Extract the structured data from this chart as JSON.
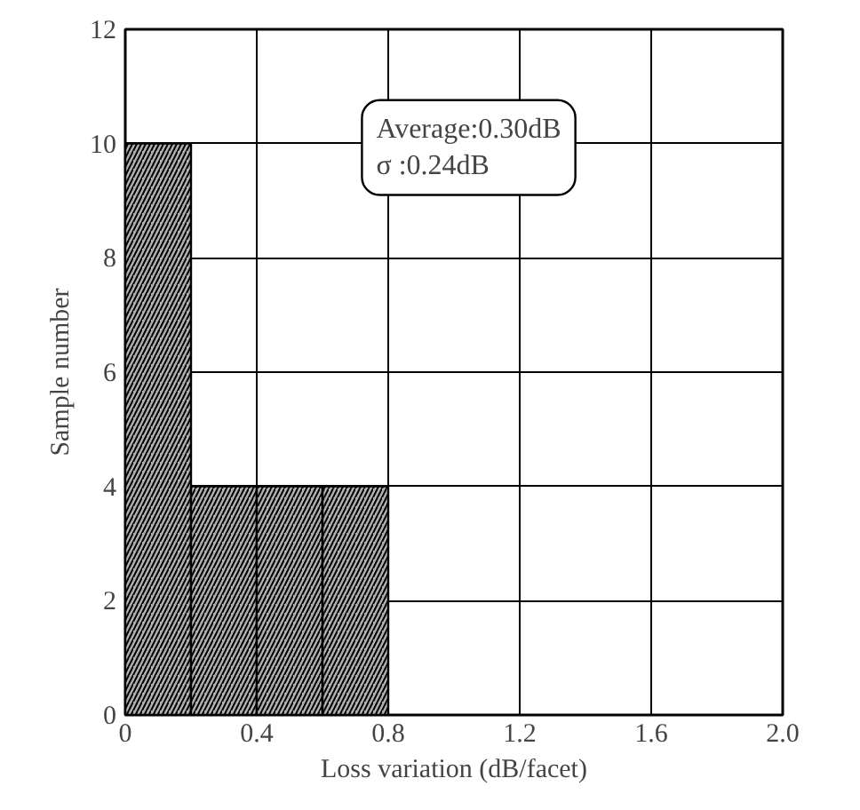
{
  "chart_data": {
    "type": "histogram",
    "xlabel": "Loss variation (dB/facet)",
    "ylabel": "Sample number",
    "bins": [
      0,
      0.2,
      0.4,
      0.6,
      0.8
    ],
    "values": [
      10,
      4,
      4,
      4
    ],
    "color": "#b0b0b0",
    "xlim": [
      0,
      2.0
    ],
    "ylim": [
      0,
      12
    ],
    "xticks": [
      0,
      0.4,
      0.8,
      1.2,
      1.6,
      {
        "value": 2.0,
        "label": "2.0"
      }
    ],
    "yticks": [
      0,
      2,
      4,
      6,
      8,
      10,
      12
    ],
    "grid": true,
    "annotations": [
      {
        "text": "Average:0.30dB\nσ :0.24dB"
      }
    ]
  }
}
